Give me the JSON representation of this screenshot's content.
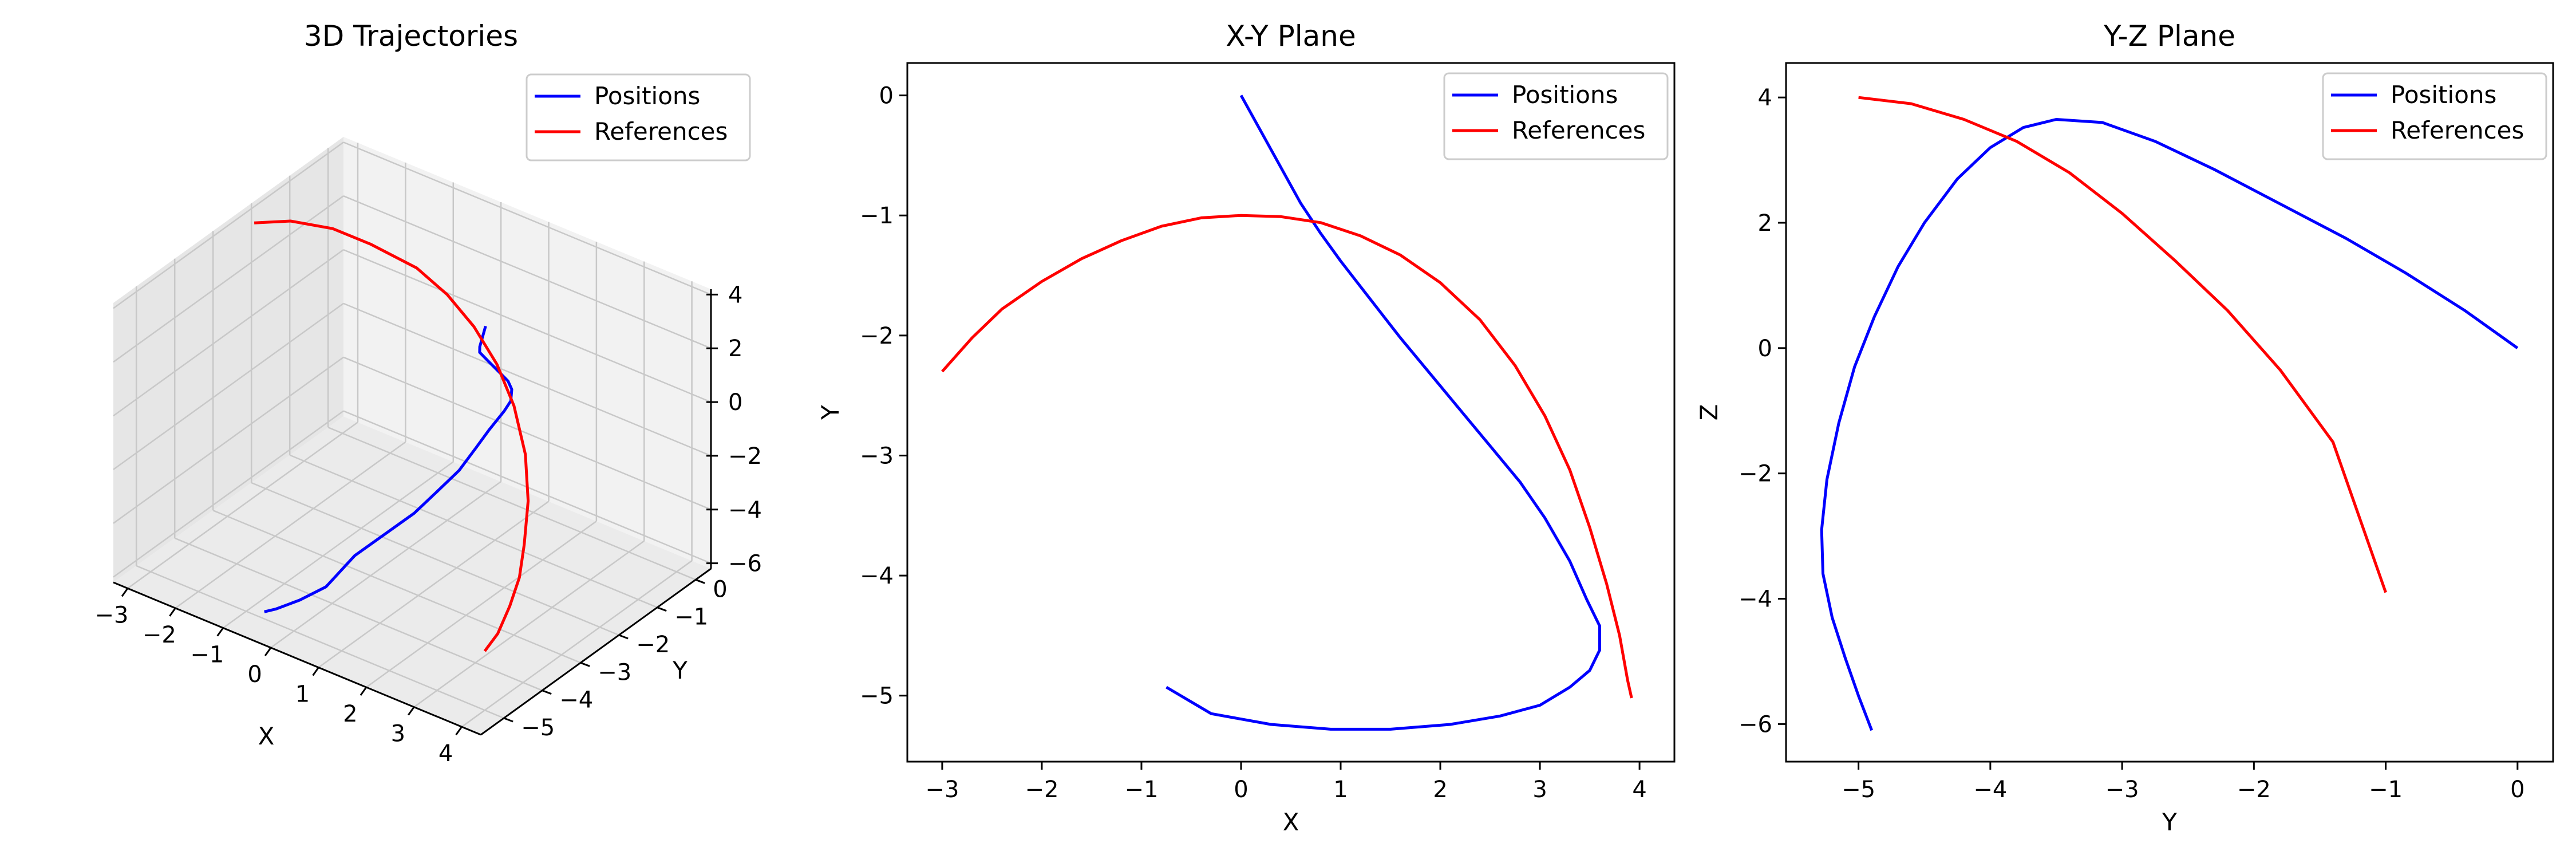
{
  "colors": {
    "positions": "#0000ff",
    "references": "#ff0000"
  },
  "chart_data": [
    {
      "type": "line3d",
      "title": "3D Trajectories",
      "xlabel": "X",
      "ylabel": "Y",
      "zlabel": "",
      "xlim": [
        -3.3,
        4.4
      ],
      "ylim": [
        -5.6,
        0.4
      ],
      "zlim": [
        -6.2,
        4.2
      ],
      "x_ticks": [
        -3,
        -2,
        -1,
        0,
        1,
        2,
        3,
        4
      ],
      "y_ticks": [
        0,
        -1,
        -2,
        -3,
        -4,
        -5
      ],
      "z_ticks": [
        4,
        2,
        0,
        -2,
        -4,
        -6
      ],
      "legend": {
        "entries": [
          "Positions",
          "References"
        ],
        "placement": "top-right"
      },
      "grid": true,
      "series": [
        {
          "name": "Positions",
          "x": [
            0,
            0.6,
            1.0,
            1.6,
            2.2,
            2.8,
            3.2,
            3.5,
            3.6,
            3.6,
            3.5,
            3.3,
            3.0,
            2.6,
            2.1,
            1.5,
            0.9,
            0.3,
            -0.3,
            -0.7
          ],
          "y": [
            0,
            -0.9,
            -1.4,
            -1.9,
            -2.4,
            -2.9,
            -3.3,
            -3.7,
            -4.0,
            -4.4,
            -4.6,
            -4.8,
            -5.0,
            -5.1,
            -5.2,
            -5.28,
            -5.28,
            -5.22,
            -5.1,
            -4.9
          ],
          "z": [
            0,
            0.6,
            1.2,
            1.8,
            2.4,
            3.0,
            3.4,
            3.6,
            3.6,
            3.3,
            2.8,
            2.0,
            1.2,
            0.2,
            -0.8,
            -2.0,
            -3.6,
            -4.6,
            -5.5,
            -6.1
          ]
        },
        {
          "name": "References",
          "x": [
            -3,
            -2.6,
            -2,
            -1.4,
            -0.6,
            0,
            0.6,
            1.2,
            1.8,
            2.4,
            2.9,
            3.3,
            3.6,
            3.8,
            3.95,
            4.0
          ],
          "y": [
            -2.3,
            -1.85,
            -1.5,
            -1.25,
            -1.05,
            -1.0,
            -1.05,
            -1.2,
            -1.5,
            -1.95,
            -2.5,
            -3.1,
            -3.6,
            -4.1,
            -4.6,
            -5.0
          ],
          "z": [
            4.0,
            3.9,
            3.7,
            3.3,
            2.8,
            2.2,
            1.5,
            0.7,
            -0.1,
            -1.0,
            -1.8,
            -2.5,
            -3.0,
            -3.4,
            -3.8,
            -4.0
          ]
        }
      ]
    },
    {
      "type": "line",
      "title": "X-Y Plane",
      "xlabel": "X",
      "ylabel": "Y",
      "xlim": [
        -3.35,
        4.35
      ],
      "ylim": [
        -5.55,
        0.27
      ],
      "x_ticks": [
        -3,
        -2,
        -1,
        0,
        1,
        2,
        3,
        4
      ],
      "y_ticks": [
        0,
        -1,
        -2,
        -3,
        -4,
        -5
      ],
      "legend": {
        "entries": [
          "Positions",
          "References"
        ],
        "placement": "top-right"
      },
      "grid": false,
      "series": [
        {
          "name": "Positions",
          "points": [
            [
              0,
              0
            ],
            [
              0.3,
              -0.45
            ],
            [
              0.6,
              -0.9
            ],
            [
              0.8,
              -1.15
            ],
            [
              1.0,
              -1.38
            ],
            [
              1.3,
              -1.7
            ],
            [
              1.6,
              -2.02
            ],
            [
              1.9,
              -2.32
            ],
            [
              2.2,
              -2.62
            ],
            [
              2.5,
              -2.92
            ],
            [
              2.8,
              -3.22
            ],
            [
              3.05,
              -3.52
            ],
            [
              3.3,
              -3.88
            ],
            [
              3.47,
              -4.2
            ],
            [
              3.6,
              -4.42
            ],
            [
              3.6,
              -4.62
            ],
            [
              3.5,
              -4.79
            ],
            [
              3.3,
              -4.93
            ],
            [
              3.0,
              -5.08
            ],
            [
              2.6,
              -5.17
            ],
            [
              2.1,
              -5.24
            ],
            [
              1.5,
              -5.28
            ],
            [
              0.9,
              -5.28
            ],
            [
              0.3,
              -5.24
            ],
            [
              -0.3,
              -5.15
            ],
            [
              -0.75,
              -4.93
            ]
          ]
        },
        {
          "name": "References",
          "points": [
            [
              -3,
              -2.3
            ],
            [
              -2.7,
              -2.02
            ],
            [
              -2.4,
              -1.78
            ],
            [
              -2.0,
              -1.55
            ],
            [
              -1.6,
              -1.36
            ],
            [
              -1.2,
              -1.21
            ],
            [
              -0.8,
              -1.09
            ],
            [
              -0.4,
              -1.02
            ],
            [
              0,
              -1.0
            ],
            [
              0.4,
              -1.01
            ],
            [
              0.8,
              -1.06
            ],
            [
              1.2,
              -1.17
            ],
            [
              1.6,
              -1.33
            ],
            [
              2.0,
              -1.56
            ],
            [
              2.4,
              -1.87
            ],
            [
              2.75,
              -2.25
            ],
            [
              3.05,
              -2.67
            ],
            [
              3.3,
              -3.12
            ],
            [
              3.5,
              -3.6
            ],
            [
              3.67,
              -4.07
            ],
            [
              3.8,
              -4.5
            ],
            [
              3.88,
              -4.87
            ],
            [
              3.92,
              -5.02
            ]
          ]
        }
      ]
    },
    {
      "type": "line",
      "title": "Y-Z Plane",
      "xlabel": "Y",
      "ylabel": "Z",
      "xlim": [
        -5.55,
        0.27
      ],
      "ylim": [
        -6.6,
        4.55
      ],
      "x_ticks": [
        -5,
        -4,
        -3,
        -2,
        -1,
        0
      ],
      "y_ticks": [
        4,
        2,
        0,
        -2,
        -4,
        -6
      ],
      "legend": {
        "entries": [
          "Positions",
          "References"
        ],
        "placement": "top-right"
      },
      "grid": false,
      "series": [
        {
          "name": "Positions",
          "points": [
            [
              0,
              0
            ],
            [
              -0.4,
              0.6
            ],
            [
              -0.85,
              1.2
            ],
            [
              -1.3,
              1.75
            ],
            [
              -1.8,
              2.3
            ],
            [
              -2.3,
              2.85
            ],
            [
              -2.75,
              3.3
            ],
            [
              -3.15,
              3.6
            ],
            [
              -3.5,
              3.65
            ],
            [
              -3.75,
              3.52
            ],
            [
              -4.0,
              3.2
            ],
            [
              -4.25,
              2.7
            ],
            [
              -4.5,
              2.0
            ],
            [
              -4.7,
              1.3
            ],
            [
              -4.88,
              0.5
            ],
            [
              -5.03,
              -0.3
            ],
            [
              -5.15,
              -1.2
            ],
            [
              -5.24,
              -2.1
            ],
            [
              -5.28,
              -2.9
            ],
            [
              -5.27,
              -3.6
            ],
            [
              -5.2,
              -4.3
            ],
            [
              -5.1,
              -4.95
            ],
            [
              -5.0,
              -5.55
            ],
            [
              -4.9,
              -6.1
            ]
          ]
        },
        {
          "name": "References",
          "points": [
            [
              -5,
              4.0
            ],
            [
              -4.6,
              3.9
            ],
            [
              -4.2,
              3.65
            ],
            [
              -3.8,
              3.3
            ],
            [
              -3.4,
              2.8
            ],
            [
              -3.0,
              2.15
            ],
            [
              -2.6,
              1.4
            ],
            [
              -2.2,
              0.6
            ],
            [
              -1.8,
              -0.35
            ],
            [
              -1.4,
              -1.5
            ],
            [
              -1.0,
              -3.9
            ]
          ]
        }
      ]
    }
  ]
}
